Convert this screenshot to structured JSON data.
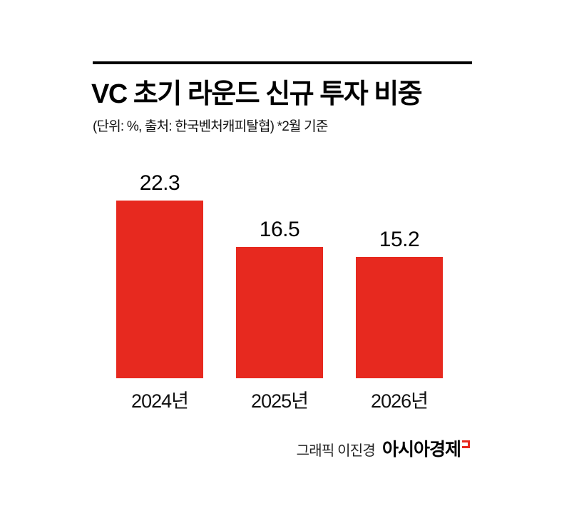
{
  "page": {
    "title": "VC 초기 라운드 신규 투자 비중",
    "subtitle": "(단위: %, 출처: 한국벤처캐피탈협)  *2월 기준",
    "credit_prefix": "그래픽 이진경",
    "credit_brand": "아시아경제"
  },
  "colors": {
    "bar": "#e7291f",
    "text": "#111111",
    "rule": "#000000"
  },
  "chart_data": {
    "type": "bar",
    "title": "VC 초기 라운드 신규 투자 비중",
    "unit": "%",
    "source": "한국벤처캐피탈협",
    "note": "*2월 기준",
    "categories": [
      "2024년",
      "2025년",
      "2026년"
    ],
    "values": [
      22.3,
      16.5,
      15.2
    ],
    "ylim": [
      0,
      25
    ],
    "grid": false,
    "legend": false,
    "value_labels": true,
    "bar_color": "#e7291f"
  }
}
